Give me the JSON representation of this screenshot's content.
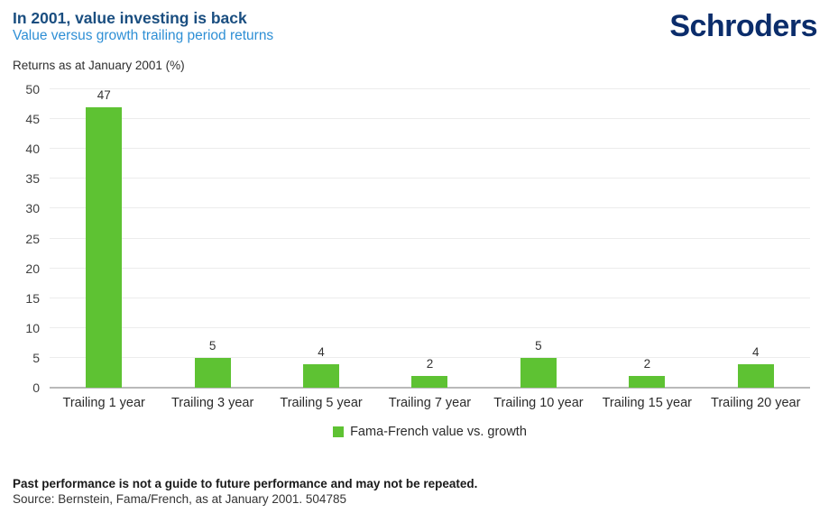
{
  "header": {
    "title": "In 2001, value investing is back",
    "subtitle": "Value versus growth trailing period returns",
    "logo": "Schroders"
  },
  "chart_data": {
    "type": "bar",
    "title": "In 2001, value investing is back",
    "subtitle": "Value versus growth trailing period returns",
    "axis_title": "Returns as at January 2001 (%)",
    "categories": [
      "Trailing 1 year",
      "Trailing 3 year",
      "Trailing 5 year",
      "Trailing 7 year",
      "Trailing 10 year",
      "Trailing 15 year",
      "Trailing 20 year"
    ],
    "values": [
      47,
      5,
      4,
      2,
      5,
      2,
      4
    ],
    "series_name": "Fama-French value vs. growth",
    "xlabel": "",
    "ylabel": "Returns as at January 2001 (%)",
    "ylim": [
      0,
      50
    ],
    "ytick_step": 5,
    "grid": "horizontal",
    "legend_position": "bottom-center"
  },
  "colors": {
    "title": "#1a4e80",
    "subtitle": "#2e8fd5",
    "logo": "#0b2d6b",
    "bar": "#5ec233",
    "gridline": "#ececec",
    "baseline": "#b9b9b9"
  },
  "footer": {
    "disclaimer": "Past performance is not a guide to future performance and may not be repeated.",
    "source": "Source: Bernstein, Fama/French, as at January 2001. 504785"
  }
}
